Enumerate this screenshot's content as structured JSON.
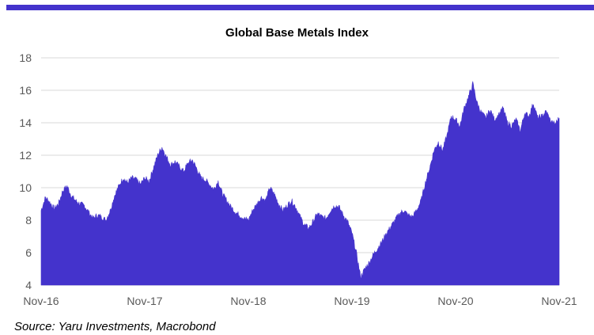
{
  "colors": {
    "accent_bar": "#4433cc",
    "area_fill": "#4433cc",
    "grid": "#d9d9d9"
  },
  "chart_data": {
    "type": "area",
    "title": "Global Base Metals Index",
    "xlabel": "",
    "ylabel": "",
    "ylim": [
      4,
      18
    ],
    "yticks": [
      "4",
      "6",
      "8",
      "10",
      "12",
      "14",
      "16",
      "18"
    ],
    "xticks": [
      "Nov-16",
      "Nov-17",
      "Nov-18",
      "Nov-19",
      "Nov-20",
      "Nov-21"
    ],
    "xlim_months": [
      0,
      60
    ],
    "grid": "horizontal",
    "legend": "none",
    "series": [
      {
        "x_months": [
          0,
          0.5,
          1,
          1.5,
          2,
          2.5,
          3,
          3.5,
          4,
          4.5,
          5,
          5.5,
          6,
          6.5,
          7,
          7.5,
          8,
          8.5,
          9,
          9.5,
          10,
          10.5,
          11,
          11.5,
          12,
          12.5,
          13,
          13.5,
          14,
          14.5,
          15,
          15.5,
          16,
          16.5,
          17,
          17.5,
          18,
          18.5,
          19,
          19.5,
          20,
          20.5,
          21,
          21.5,
          22,
          22.5,
          23,
          23.5,
          24,
          24.5,
          25,
          25.5,
          26,
          26.5,
          27,
          27.5,
          28,
          28.5,
          29,
          29.5,
          30,
          30.5,
          31,
          31.5,
          32,
          32.5,
          33,
          33.5,
          34,
          34.5,
          35,
          35.5,
          36,
          36.5,
          37,
          37.5,
          38,
          38.5,
          39,
          39.5,
          40,
          40.5,
          41,
          41.5,
          42,
          42.5,
          43,
          43.5,
          44,
          44.5,
          45,
          45.5,
          46,
          46.5,
          47,
          47.5,
          48,
          48.5,
          49,
          49.5,
          50,
          50.5,
          51,
          51.5,
          52,
          52.5,
          53,
          53.5,
          54,
          54.5,
          55,
          55.5,
          56,
          56.5,
          57,
          57.5,
          58,
          58.5,
          59,
          59.5,
          60
        ],
        "values": [
          8.6,
          9.4,
          9.1,
          8.7,
          9.0,
          9.8,
          10.1,
          9.5,
          9.2,
          9.0,
          8.9,
          8.5,
          8.1,
          8.3,
          8.2,
          8.0,
          8.6,
          9.5,
          10.1,
          10.6,
          10.3,
          10.6,
          10.5,
          10.2,
          10.6,
          10.4,
          11.2,
          12.0,
          12.5,
          11.9,
          11.4,
          11.6,
          11.3,
          11.0,
          11.5,
          11.7,
          11.2,
          10.6,
          10.5,
          10.2,
          9.9,
          10.4,
          9.6,
          9.2,
          8.8,
          8.5,
          8.3,
          8.1,
          8.0,
          8.6,
          9.0,
          9.4,
          9.2,
          10.0,
          9.6,
          9.0,
          8.6,
          8.9,
          9.2,
          8.8,
          8.2,
          7.7,
          7.5,
          7.9,
          8.4,
          8.2,
          8.1,
          8.6,
          8.9,
          8.8,
          8.3,
          7.9,
          7.2,
          6.0,
          4.5,
          5.0,
          5.4,
          5.9,
          6.3,
          6.7,
          7.2,
          7.6,
          8.0,
          8.4,
          8.6,
          8.3,
          8.2,
          8.6,
          9.2,
          10.3,
          11.2,
          12.3,
          12.8,
          12.3,
          13.2,
          14.4,
          14.2,
          13.8,
          14.9,
          15.6,
          16.4,
          15.2,
          14.6,
          14.3,
          14.8,
          14.2,
          14.5,
          14.9,
          14.0,
          13.8,
          14.2,
          13.5,
          14.6,
          14.4,
          15.2,
          14.3,
          14.4,
          14.7,
          14.1,
          13.9,
          14.3
        ]
      }
    ]
  },
  "source": "Source: Yaru Investments, Macrobond"
}
